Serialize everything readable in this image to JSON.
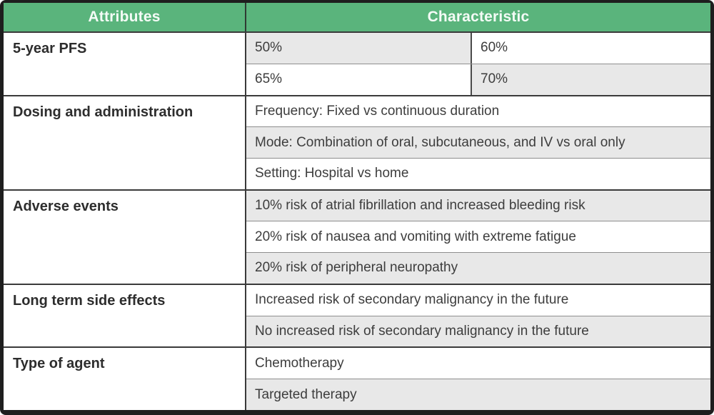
{
  "header": {
    "attributes_label": "Attributes",
    "characteristic_label": "Characteristic"
  },
  "colors": {
    "header_green": "#5ab47c",
    "header_text": "#f4fbf6",
    "row_gray": "#e8e8e8",
    "row_white": "#ffffff",
    "outer_border": "#1e1e1e",
    "section_line": "#3a3a3a",
    "subrow_line": "#8e8e8e",
    "body_text": "#3d3d3d",
    "attribute_text": "#2d2d2d"
  },
  "table": {
    "sections": [
      {
        "attribute": "5-year PFS",
        "rows": [
          {
            "cells": [
              {
                "text": "50%",
                "shade": "gray"
              },
              {
                "text": "60%",
                "shade": "white"
              }
            ]
          },
          {
            "cells": [
              {
                "text": "65%",
                "shade": "white"
              },
              {
                "text": "70%",
                "shade": "gray"
              }
            ]
          }
        ]
      },
      {
        "attribute": "Dosing and administration",
        "rows": [
          {
            "cells": [
              {
                "text": "Frequency: Fixed vs continuous duration",
                "shade": "white"
              }
            ]
          },
          {
            "cells": [
              {
                "text": "Mode: Combination of oral, subcutaneous, and IV vs oral only",
                "shade": "gray"
              }
            ]
          },
          {
            "cells": [
              {
                "text": "Setting: Hospital vs home",
                "shade": "white"
              }
            ]
          }
        ]
      },
      {
        "attribute": "Adverse events",
        "rows": [
          {
            "cells": [
              {
                "text": "10% risk of atrial fibrillation and increased bleeding risk",
                "shade": "gray"
              }
            ]
          },
          {
            "cells": [
              {
                "text": "20% risk of nausea and vomiting with extreme fatigue",
                "shade": "white"
              }
            ]
          },
          {
            "cells": [
              {
                "text": "20% risk of peripheral neuropathy",
                "shade": "gray"
              }
            ]
          }
        ]
      },
      {
        "attribute": "Long term side effects",
        "rows": [
          {
            "cells": [
              {
                "text": "Increased risk of secondary malignancy in the future",
                "shade": "white"
              }
            ]
          },
          {
            "cells": [
              {
                "text": "No increased risk of secondary malignancy in the future",
                "shade": "gray"
              }
            ]
          }
        ]
      },
      {
        "attribute": "Type of agent",
        "rows": [
          {
            "cells": [
              {
                "text": "Chemotherapy",
                "shade": "white"
              }
            ]
          },
          {
            "cells": [
              {
                "text": "Targeted therapy",
                "shade": "gray"
              }
            ]
          }
        ]
      }
    ]
  }
}
